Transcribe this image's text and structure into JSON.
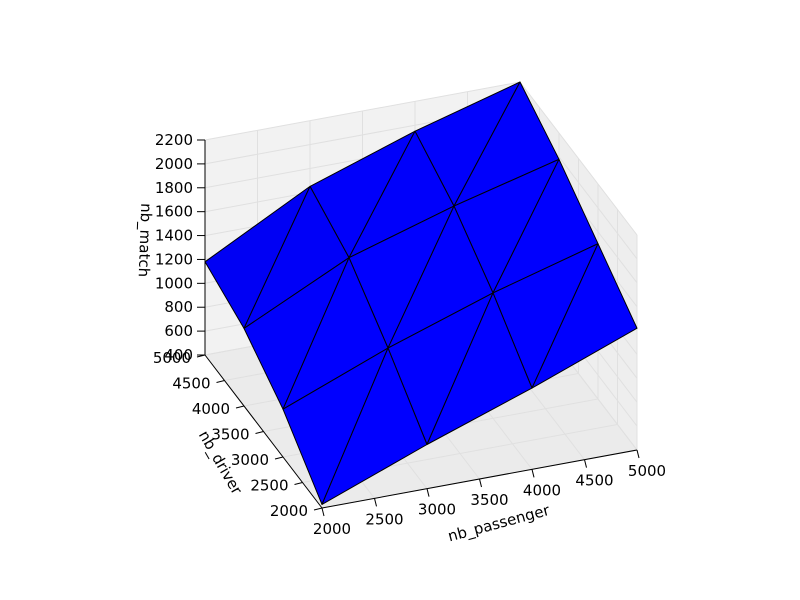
{
  "chart_data": {
    "type": "surface3d",
    "title": "",
    "xlabel": "nb_passenger",
    "ylabel": "nb_driver",
    "zlabel": "nb_match",
    "xlim": [
      2000,
      5000
    ],
    "ylim": [
      2000,
      5000
    ],
    "zlim": [
      400,
      2200
    ],
    "x_ticks": [
      2000,
      2500,
      3000,
      3500,
      4000,
      4500,
      5000
    ],
    "y_ticks": [
      2000,
      2500,
      3000,
      3500,
      4000,
      4500,
      5000
    ],
    "z_ticks": [
      400,
      600,
      800,
      1000,
      1200,
      1400,
      1600,
      1800,
      2000,
      2200
    ],
    "x_tick_labels": [
      "2000",
      "2500",
      "3000",
      "3500",
      "4000",
      "4500",
      "5000"
    ],
    "y_tick_labels": [
      "2000",
      "2500",
      "3000",
      "3500",
      "4000",
      "4500",
      "5000"
    ],
    "z_tick_labels": [
      "400",
      "600",
      "800",
      "1000",
      "1200",
      "1400",
      "1600",
      "1800",
      "2000",
      "2200"
    ],
    "grid": true,
    "surface_color": "#0000ff",
    "edge_color": "#000000",
    "pane_color": "#f2f2f2",
    "x": [
      2000,
      3000,
      4000,
      5000
    ],
    "y": [
      2000,
      3000,
      4000,
      5000
    ],
    "z": [
      [
        430,
        770,
        1080,
        1420
      ],
      [
        800,
        1150,
        1450,
        1700
      ],
      [
        1050,
        1480,
        1750,
        1980
      ],
      [
        1180,
        1650,
        1950,
        2200
      ]
    ]
  }
}
